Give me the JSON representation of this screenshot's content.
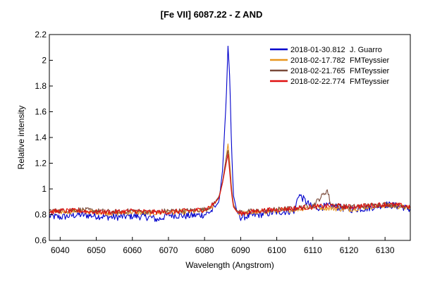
{
  "chart_data": {
    "type": "line",
    "title": "[Fe VII] 6087.22 - Z AND",
    "xlabel": "Wavelength (Angstrom)",
    "ylabel": "Relative intensity",
    "xlim": [
      6037,
      6137
    ],
    "ylim": [
      0.6,
      2.2
    ],
    "x_ticks": [
      6040,
      6050,
      6060,
      6070,
      6080,
      6090,
      6100,
      6110,
      6120,
      6130
    ],
    "y_ticks": [
      0.6,
      0.8,
      1,
      1.2,
      1.4,
      1.6,
      1.8,
      2,
      2.2
    ],
    "y_tick_labels": [
      "0.6",
      "0.8",
      "1",
      "1.2",
      "1.4",
      "1.6",
      "1.8",
      "2",
      "2.2"
    ],
    "grid": false,
    "legend_position": "top-right",
    "series": [
      {
        "name": "2018-01-30.812",
        "observer": "J. Guarro",
        "color": "#0000cc",
        "x": [
          6037,
          6040,
          6045,
          6050,
          6055,
          6060,
          6065,
          6067,
          6070,
          6075,
          6080,
          6082,
          6084,
          6085,
          6086,
          6086.5,
          6087,
          6087.5,
          6088,
          6089,
          6090,
          6095,
          6100,
          6105,
          6106,
          6110,
          6115,
          6120,
          6125,
          6130,
          6135,
          6137
        ],
        "y": [
          0.79,
          0.78,
          0.8,
          0.79,
          0.78,
          0.79,
          0.78,
          0.76,
          0.8,
          0.79,
          0.8,
          0.83,
          0.9,
          1.15,
          1.7,
          2.11,
          1.85,
          1.3,
          0.95,
          0.82,
          0.78,
          0.8,
          0.82,
          0.83,
          0.96,
          0.85,
          0.87,
          0.84,
          0.85,
          0.88,
          0.86,
          0.84
        ]
      },
      {
        "name": "2018-02-17.782",
        "observer": "FMTeyssier",
        "color": "#e8961e",
        "x": [
          6037,
          6040,
          6045,
          6050,
          6055,
          6060,
          6065,
          6070,
          6075,
          6080,
          6082,
          6084,
          6085,
          6086,
          6086.5,
          6087,
          6087.5,
          6088,
          6089,
          6090,
          6095,
          6100,
          6105,
          6110,
          6115,
          6120,
          6125,
          6130,
          6135,
          6137
        ],
        "y": [
          0.82,
          0.82,
          0.83,
          0.82,
          0.81,
          0.82,
          0.81,
          0.82,
          0.82,
          0.83,
          0.86,
          0.93,
          1.05,
          1.25,
          1.35,
          1.2,
          1.0,
          0.88,
          0.82,
          0.81,
          0.82,
          0.83,
          0.84,
          0.86,
          0.85,
          0.84,
          0.86,
          0.87,
          0.86,
          0.85
        ]
      },
      {
        "name": "2018-02-21.765",
        "observer": "FMTeyssier",
        "color": "#7a4a3a",
        "x": [
          6037,
          6040,
          6045,
          6050,
          6055,
          6060,
          6065,
          6070,
          6075,
          6080,
          6082,
          6084,
          6085,
          6086,
          6086.5,
          6087,
          6087.5,
          6088,
          6089,
          6090,
          6095,
          6100,
          6105,
          6110,
          6114,
          6115,
          6120,
          6125,
          6130,
          6135,
          6137
        ],
        "y": [
          0.83,
          0.83,
          0.84,
          0.83,
          0.82,
          0.83,
          0.82,
          0.83,
          0.83,
          0.84,
          0.87,
          0.94,
          1.06,
          1.24,
          1.3,
          1.15,
          0.98,
          0.87,
          0.83,
          0.82,
          0.83,
          0.84,
          0.85,
          0.87,
          0.99,
          0.88,
          0.86,
          0.87,
          0.88,
          0.87,
          0.86
        ]
      },
      {
        "name": "2018-02-22.774",
        "observer": "FMTeyssier",
        "color": "#e01010",
        "x": [
          6037,
          6040,
          6045,
          6050,
          6055,
          6060,
          6065,
          6070,
          6075,
          6080,
          6082,
          6084,
          6085,
          6086,
          6086.5,
          6087,
          6087.5,
          6088,
          6089,
          6090,
          6095,
          6100,
          6105,
          6110,
          6115,
          6120,
          6125,
          6130,
          6135,
          6137
        ],
        "y": [
          0.82,
          0.83,
          0.83,
          0.82,
          0.82,
          0.83,
          0.82,
          0.82,
          0.83,
          0.84,
          0.87,
          0.93,
          1.05,
          1.2,
          1.27,
          1.12,
          0.96,
          0.86,
          0.82,
          0.81,
          0.83,
          0.84,
          0.85,
          0.86,
          0.87,
          0.86,
          0.87,
          0.88,
          0.87,
          0.86
        ]
      }
    ]
  }
}
